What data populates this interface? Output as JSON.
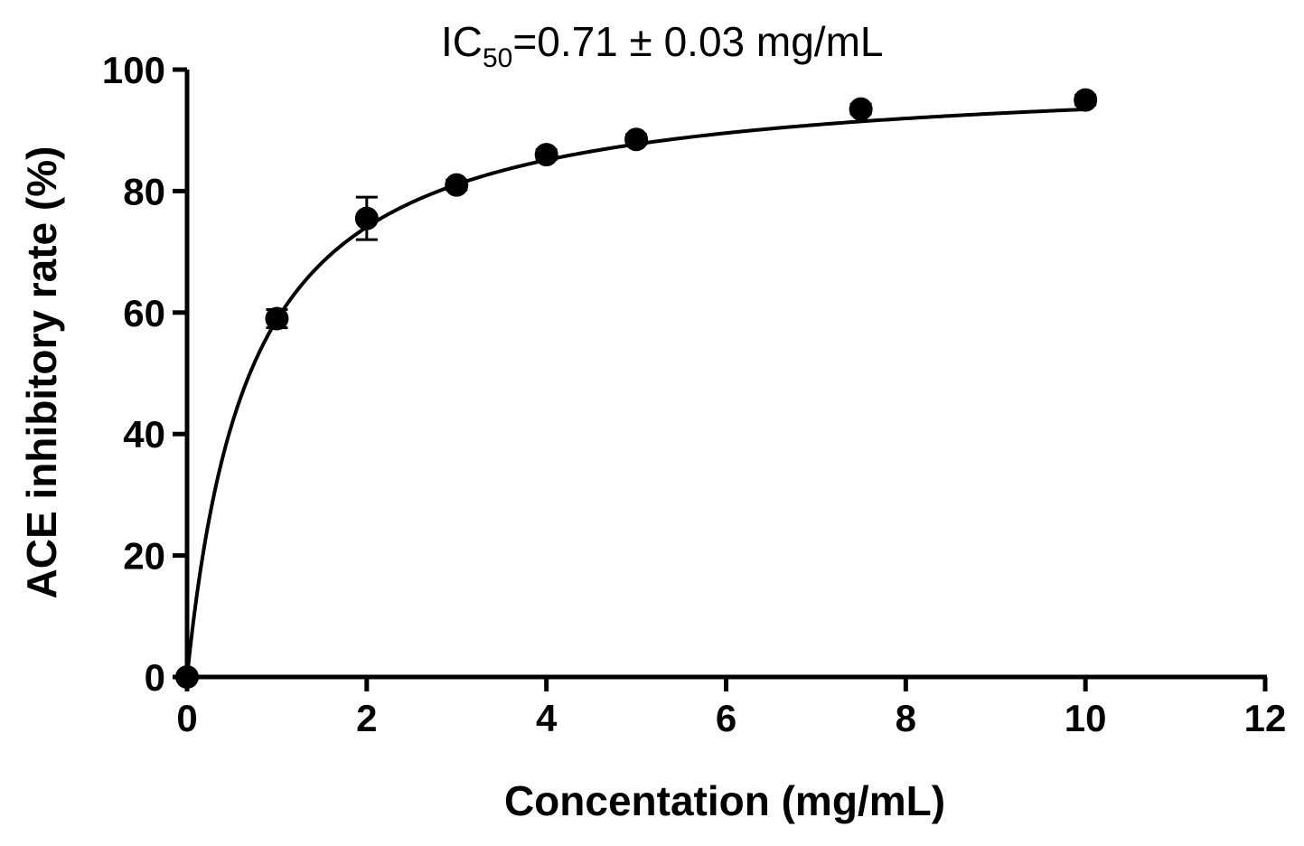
{
  "chart_data": {
    "type": "scatter",
    "annotation": {
      "prefix": "IC",
      "subscript": "50",
      "suffix": "=0.71 ± 0.03 mg/mL"
    },
    "xlabel": "Concentation (mg/mL)",
    "ylabel": "ACE inhibitory rate (%)",
    "xlim": [
      0,
      12
    ],
    "ylim": [
      0,
      100
    ],
    "xticks": [
      0,
      2,
      4,
      6,
      8,
      10,
      12
    ],
    "yticks": [
      0,
      20,
      40,
      60,
      80,
      100
    ],
    "grid": false,
    "series": [
      {
        "points": [
          {
            "x": 0,
            "y": 0,
            "err": 0
          },
          {
            "x": 1,
            "y": 59,
            "err": 1.5
          },
          {
            "x": 2,
            "y": 75.5,
            "err": 3.5
          },
          {
            "x": 3,
            "y": 81,
            "err": 0.8
          },
          {
            "x": 4,
            "y": 86,
            "err": 0.8
          },
          {
            "x": 5,
            "y": 88.5,
            "err": 0.8
          },
          {
            "x": 7.5,
            "y": 93.5,
            "err": 0.8
          },
          {
            "x": 10,
            "y": 95,
            "err": 0.8
          }
        ]
      }
    ],
    "fit": {
      "type": "hyperbolic",
      "vmax": 100,
      "k": 0.7,
      "x_end": 10
    },
    "colors": {
      "points": "#000000",
      "line": "#000000"
    }
  }
}
